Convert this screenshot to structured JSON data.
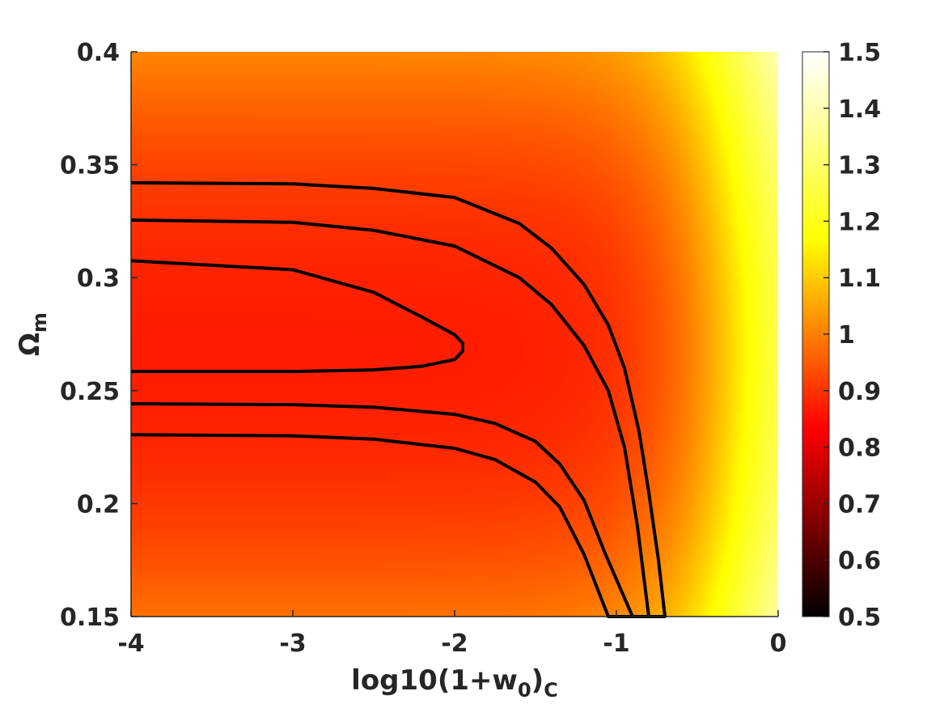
{
  "chart_data": {
    "type": "heatmap",
    "title": "",
    "xlabel": "log10(1+w",
    "xlabel_sub": "0",
    "xlabel_close": ")",
    "xlabel_sub2": "C",
    "ylabel": "Ω",
    "ylabel_sub": "m",
    "xlim": [
      -4,
      0
    ],
    "ylim": [
      0.15,
      0.4
    ],
    "x_ticks": [
      -4,
      -3,
      -2,
      -1,
      0
    ],
    "x_tick_labels": [
      "-4",
      "-3",
      "-2",
      "-1",
      "0"
    ],
    "y_ticks": [
      0.15,
      0.2,
      0.25,
      0.3,
      0.35,
      0.4
    ],
    "y_tick_labels": [
      "0.15",
      "0.2",
      "0.25",
      "0.3",
      "0.35",
      "0.4"
    ],
    "colorbar": {
      "range": [
        0.5,
        1.5
      ],
      "ticks": [
        0.5,
        0.6,
        0.7,
        0.8,
        0.9,
        1,
        1.1,
        1.2,
        1.3,
        1.4,
        1.5
      ],
      "tick_labels": [
        "0.5",
        "0.6",
        "0.7",
        "0.8",
        "0.9",
        "1",
        "1.1",
        "1.2",
        "1.3",
        "1.4",
        "1.5"
      ],
      "colormap": "hot",
      "stops": [
        {
          "v": 0.5,
          "color": "#000000"
        },
        {
          "v": 0.833,
          "color": "#ff0000"
        },
        {
          "v": 1.167,
          "color": "#ffff00"
        },
        {
          "v": 1.5,
          "color": "#ffffff"
        }
      ]
    },
    "grid": false,
    "field_model": {
      "description_values": "chi-square-like field: min near x=-4,y=0.268; rising with x toward 0 and with distance from y=0.268",
      "center_y": 0.268,
      "base": 0.87,
      "y_coeff": 8,
      "x_amp": 0.58,
      "x_center": -0.2,
      "x_width": 0.28
    },
    "contours": [
      {
        "name": "inner",
        "points": [
          [
            -4,
            0.2585
          ],
          [
            -3,
            0.2585
          ],
          [
            -2.5,
            0.2592
          ],
          [
            -2.2,
            0.2608
          ],
          [
            -2.0,
            0.2638
          ],
          [
            -1.95,
            0.2675
          ],
          [
            -1.95,
            0.271
          ],
          [
            -2.0,
            0.2748
          ],
          [
            -2.2,
            0.2825
          ],
          [
            -2.5,
            0.2935
          ],
          [
            -3,
            0.3035
          ],
          [
            -4,
            0.3075
          ]
        ]
      },
      {
        "name": "middle",
        "points": [
          [
            -4,
            0.2442
          ],
          [
            -3,
            0.2438
          ],
          [
            -2.5,
            0.2427
          ],
          [
            -2.0,
            0.2395
          ],
          [
            -1.75,
            0.2355
          ],
          [
            -1.5,
            0.2275
          ],
          [
            -1.35,
            0.2175
          ],
          [
            -1.2,
            0.2015
          ],
          [
            -1.07,
            0.178
          ],
          [
            -0.9,
            0.15
          ],
          [
            -0.8,
            0.15
          ],
          [
            -0.87,
            0.19
          ],
          [
            -0.95,
            0.225
          ],
          [
            -1.05,
            0.25
          ],
          [
            -1.2,
            0.27
          ],
          [
            -1.4,
            0.288
          ],
          [
            -1.6,
            0.3
          ],
          [
            -2.0,
            0.314
          ],
          [
            -2.5,
            0.321
          ],
          [
            -3,
            0.3245
          ],
          [
            -4,
            0.3255
          ]
        ]
      },
      {
        "name": "outer",
        "points": [
          [
            -4,
            0.2305
          ],
          [
            -3,
            0.23
          ],
          [
            -2.5,
            0.2285
          ],
          [
            -2.0,
            0.2245
          ],
          [
            -1.75,
            0.2195
          ],
          [
            -1.5,
            0.2095
          ],
          [
            -1.35,
            0.1985
          ],
          [
            -1.2,
            0.1775
          ],
          [
            -1.05,
            0.15
          ],
          [
            -0.7,
            0.15
          ],
          [
            -0.74,
            0.175
          ],
          [
            -0.8,
            0.205
          ],
          [
            -0.86,
            0.232
          ],
          [
            -0.95,
            0.26
          ],
          [
            -1.05,
            0.279
          ],
          [
            -1.2,
            0.297
          ],
          [
            -1.4,
            0.313
          ],
          [
            -1.6,
            0.324
          ],
          [
            -2.0,
            0.3355
          ],
          [
            -2.5,
            0.3395
          ],
          [
            -3,
            0.3415
          ],
          [
            -4,
            0.342
          ]
        ]
      }
    ]
  }
}
